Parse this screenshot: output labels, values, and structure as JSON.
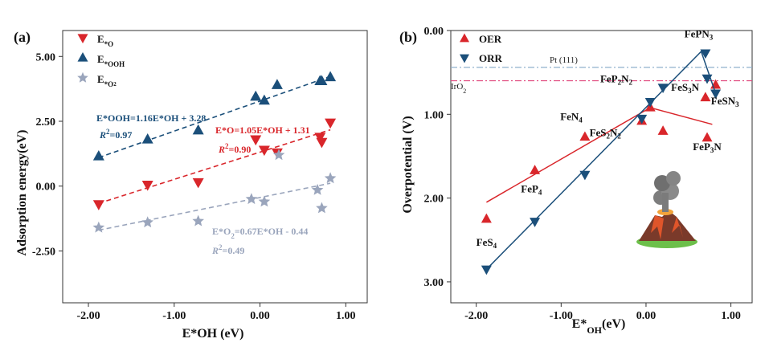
{
  "chart_data": [
    {
      "panel": "(a)",
      "type": "scatter",
      "xlabel": "E*OH (eV)",
      "ylabel": "Adsorption energy(eV)",
      "xlim": [
        -2.3,
        1.25
      ],
      "ylim": [
        -4.5,
        6.0
      ],
      "xticks": [
        "-2.00",
        "-1.00",
        "0.00",
        "1.00"
      ],
      "xtick_values": [
        -2,
        -1,
        0,
        1
      ],
      "yticks": [
        "5.00",
        "2.50",
        "0.00",
        "-2.50"
      ],
      "ytick_values": [
        5,
        2.5,
        0,
        -2.5
      ],
      "legend": [
        "E*O",
        "E*OOH",
        "E*O2"
      ],
      "series": [
        {
          "name": "E*O",
          "marker": "triangle-down",
          "color": "#d9262b",
          "x": [
            -1.88,
            -1.31,
            -0.72,
            -0.05,
            0.05,
            0.2,
            0.7,
            0.72,
            0.82
          ],
          "y": [
            -0.7,
            0.05,
            0.15,
            1.8,
            1.4,
            1.3,
            1.9,
            1.7,
            2.45
          ],
          "fit": {
            "slope": 1.05,
            "intercept": 1.31,
            "x_range": [
              -1.88,
              0.82
            ]
          },
          "equation": "E*O=1.05E*OH + 1.31",
          "r2_label": "R2=0.90"
        },
        {
          "name": "E*OOH",
          "marker": "triangle-up",
          "color": "#1b4f7a",
          "x": [
            -1.88,
            -1.31,
            -0.72,
            -0.05,
            0.05,
            0.2,
            0.7,
            0.72,
            0.82
          ],
          "y": [
            1.15,
            1.8,
            2.15,
            3.45,
            3.3,
            3.9,
            4.05,
            4.05,
            4.2
          ],
          "fit": {
            "slope": 1.16,
            "intercept": 3.28,
            "x_range": [
              -1.88,
              0.82
            ]
          },
          "equation": "E*OOH=1.16E*OH + 3.28",
          "r2_label": "R2=0.97"
        },
        {
          "name": "E*O2",
          "marker": "star",
          "color": "#9aa5bc",
          "x": [
            -1.88,
            -1.31,
            -0.72,
            -0.1,
            0.05,
            0.22,
            0.67,
            0.72,
            0.82
          ],
          "y": [
            -1.6,
            -1.4,
            -1.35,
            -0.5,
            -0.6,
            1.2,
            -0.15,
            -0.85,
            0.3
          ],
          "fit": {
            "slope": 0.67,
            "intercept": -0.44,
            "x_range": [
              -1.88,
              0.82
            ]
          },
          "equation": "E*O2=0.67E*OH - 0.44",
          "r2_label": "R2=0.49"
        }
      ]
    },
    {
      "panel": "(b)",
      "type": "scatter",
      "xlabel": "E*OH(eV)",
      "ylabel": "Overpotential (V)",
      "xlim": [
        -2.3,
        1.25
      ],
      "ylim": [
        0.0,
        3.25
      ],
      "y_inverted": true,
      "xticks": [
        "-2.00",
        "-1.00",
        "0.00",
        "1.00"
      ],
      "xtick_values": [
        -2,
        -1,
        0,
        1
      ],
      "yticks": [
        "0.00",
        "1.00",
        "2.00",
        "3.00"
      ],
      "ytick_values": [
        0,
        1,
        2,
        3
      ],
      "legend": [
        "OER",
        "ORR"
      ],
      "reference_lines": [
        {
          "label": "Pt (111)",
          "y": 0.44,
          "color": "#8fb0cc"
        },
        {
          "label": "IrO2",
          "y": 0.6,
          "color": "#e0467c"
        }
      ],
      "series": [
        {
          "name": "OER",
          "marker": "triangle-up",
          "color": "#d9262b",
          "x": [
            -1.88,
            -1.31,
            -0.72,
            -0.05,
            0.05,
            0.2,
            0.7,
            0.72,
            0.82
          ],
          "y": [
            2.25,
            1.67,
            1.27,
            1.08,
            0.92,
            1.2,
            0.8,
            1.28,
            0.65
          ],
          "fit_line": {
            "x": [
              -1.88,
              0.05,
              0.78
            ],
            "y": [
              2.05,
              0.92,
              1.12
            ]
          }
        },
        {
          "name": "ORR",
          "marker": "triangle-down",
          "color": "#1b4f7a",
          "x": [
            -1.88,
            -1.31,
            -0.72,
            -0.05,
            0.05,
            0.2,
            0.7,
            0.72,
            0.82
          ],
          "y": [
            2.85,
            2.28,
            1.72,
            1.05,
            0.85,
            0.68,
            0.27,
            0.57,
            0.75
          ],
          "fit_line": {
            "x": [
              -1.88,
              0.65,
              0.82
            ],
            "y": [
              2.85,
              0.25,
              0.75
            ]
          }
        }
      ],
      "annotations": [
        {
          "label": "FeS4",
          "x": -1.88,
          "y": 2.57
        },
        {
          "label": "FeP4",
          "x": -1.35,
          "y": 1.93
        },
        {
          "label": "FeN4",
          "x": -0.88,
          "y": 1.07
        },
        {
          "label": "FeS2N2",
          "x": -0.48,
          "y": 1.26
        },
        {
          "label": "FeP2N2",
          "x": -0.35,
          "y": 0.62
        },
        {
          "label": "FeS3N",
          "x": 0.46,
          "y": 0.72
        },
        {
          "label": "FePN3",
          "x": 0.62,
          "y": 0.08
        },
        {
          "label": "FeSN3",
          "x": 0.93,
          "y": 0.88
        },
        {
          "label": "FeP3N",
          "x": 0.72,
          "y": 1.43
        }
      ]
    }
  ]
}
